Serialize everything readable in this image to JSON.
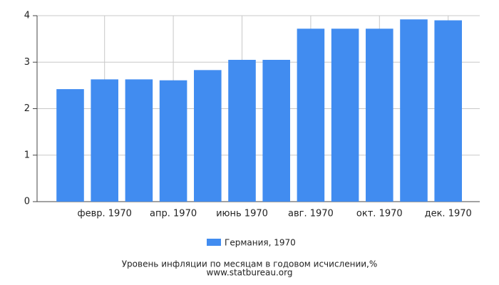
{
  "chart_data": {
    "type": "bar",
    "title": "Уровень инфляции по месяцам в годовом исчислении,%",
    "source": "www.statbureau.org",
    "categories": [
      null,
      "февр. 1970",
      null,
      "апр. 1970",
      null,
      "июнь 1970",
      null,
      "авг. 1970",
      null,
      "окт. 1970",
      null,
      "дек. 1970"
    ],
    "series": [
      {
        "name": "Германия, 1970",
        "color": "#418cf0",
        "values": [
          2.42,
          2.63,
          2.63,
          2.61,
          2.83,
          3.05,
          3.05,
          3.72,
          3.72,
          3.72,
          3.92,
          3.9
        ]
      }
    ],
    "ylim": [
      0,
      4
    ],
    "yticks": [
      0,
      1,
      2,
      3,
      4
    ],
    "grid": true
  }
}
